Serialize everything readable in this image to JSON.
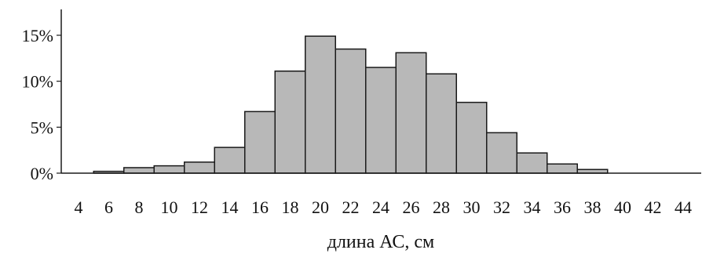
{
  "chart_data": {
    "type": "bar",
    "title": "",
    "xlabel": "длина АС, см",
    "ylabel": "",
    "x_tick_labels": [
      "4",
      "6",
      "8",
      "10",
      "12",
      "14",
      "16",
      "18",
      "20",
      "22",
      "24",
      "26",
      "28",
      "30",
      "32",
      "34",
      "36",
      "38",
      "40",
      "42",
      "44"
    ],
    "y_tick_labels": [
      "0%",
      "5%",
      "10%",
      "15%"
    ],
    "y_ticks": [
      0,
      5,
      10,
      15
    ],
    "ylim": [
      0,
      18
    ],
    "xlim": [
      4,
      44
    ],
    "bins": [
      {
        "start": 5,
        "end": 7,
        "value": 0.2
      },
      {
        "start": 7,
        "end": 9,
        "value": 0.6
      },
      {
        "start": 9,
        "end": 11,
        "value": 0.8
      },
      {
        "start": 11,
        "end": 13,
        "value": 1.2
      },
      {
        "start": 13,
        "end": 15,
        "value": 2.8
      },
      {
        "start": 15,
        "end": 17,
        "value": 6.7
      },
      {
        "start": 17,
        "end": 19,
        "value": 11.1
      },
      {
        "start": 19,
        "end": 21,
        "value": 14.9
      },
      {
        "start": 21,
        "end": 23,
        "value": 13.5
      },
      {
        "start": 23,
        "end": 25,
        "value": 11.5
      },
      {
        "start": 25,
        "end": 27,
        "value": 13.1
      },
      {
        "start": 27,
        "end": 29,
        "value": 10.8
      },
      {
        "start": 29,
        "end": 31,
        "value": 7.7
      },
      {
        "start": 31,
        "end": 33,
        "value": 4.4
      },
      {
        "start": 33,
        "end": 35,
        "value": 2.2
      },
      {
        "start": 35,
        "end": 37,
        "value": 1.0
      },
      {
        "start": 37,
        "end": 39,
        "value": 0.4
      }
    ],
    "grid": false,
    "legend": "none",
    "colors": {
      "bar_fill": "#b8b8b8",
      "bar_stroke": "#1a1a1a"
    }
  }
}
